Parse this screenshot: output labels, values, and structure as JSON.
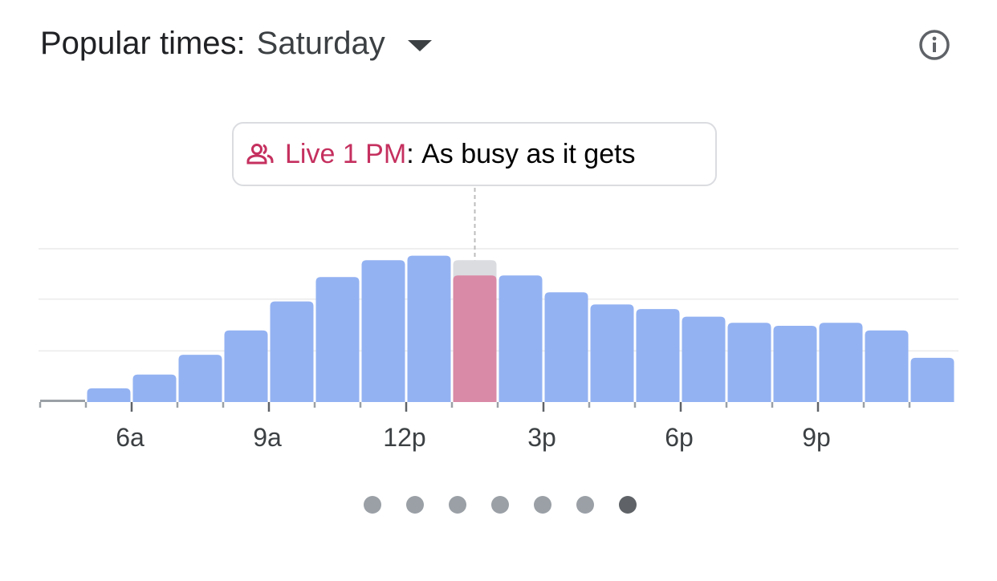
{
  "header": {
    "title": "Popular times:",
    "day": "Saturday",
    "info_icon": "info-icon",
    "dropdown_icon": "caret-down-icon"
  },
  "tooltip": {
    "icon": "people-icon",
    "live_label": "Live 1 PM",
    "separator": ": ",
    "status": "As busy as it gets"
  },
  "colors": {
    "bar": "#93b2f2",
    "live": "#d98aa6",
    "usual_at_live": "#dadce0",
    "live_text": "#c5305f"
  },
  "chart_data": {
    "type": "bar",
    "categories": [
      "4a",
      "5a",
      "6a",
      "7a",
      "8a",
      "9a",
      "10a",
      "11a",
      "12p",
      "1p",
      "2p",
      "3p",
      "4p",
      "5p",
      "6p",
      "7p",
      "8p",
      "9p",
      "10p",
      "11p"
    ],
    "values": [
      0,
      9,
      18,
      31,
      47,
      66,
      82,
      93,
      96,
      93,
      83,
      72,
      64,
      61,
      56,
      52,
      50,
      52,
      47,
      29
    ],
    "live": {
      "category": "1p",
      "value": 83
    },
    "tick_labels": [
      {
        "at": "6a",
        "label": "6a"
      },
      {
        "at": "9a",
        "label": "9a"
      },
      {
        "at": "12p",
        "label": "12p"
      },
      {
        "at": "3p",
        "label": "3p"
      },
      {
        "at": "6p",
        "label": "6p"
      },
      {
        "at": "9p",
        "label": "9p"
      }
    ],
    "ylim": [
      0,
      100
    ],
    "grid": true
  },
  "pager": {
    "count": 7,
    "active": 6
  }
}
